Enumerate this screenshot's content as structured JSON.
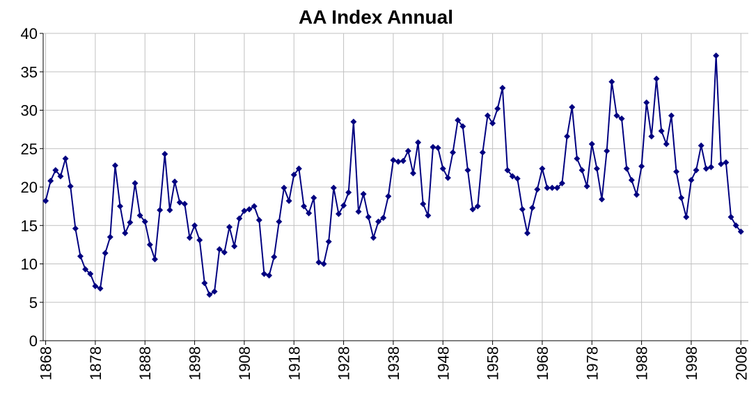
{
  "chart_data": {
    "type": "line",
    "title": "AA Index Annual",
    "x": [
      1868,
      1869,
      1870,
      1871,
      1872,
      1873,
      1874,
      1875,
      1876,
      1877,
      1878,
      1879,
      1880,
      1881,
      1882,
      1883,
      1884,
      1885,
      1886,
      1887,
      1888,
      1889,
      1890,
      1891,
      1892,
      1893,
      1894,
      1895,
      1896,
      1897,
      1898,
      1899,
      1900,
      1901,
      1902,
      1903,
      1904,
      1905,
      1906,
      1907,
      1908,
      1909,
      1910,
      1911,
      1912,
      1913,
      1914,
      1915,
      1916,
      1917,
      1918,
      1919,
      1920,
      1921,
      1922,
      1923,
      1924,
      1925,
      1926,
      1927,
      1928,
      1929,
      1930,
      1931,
      1932,
      1933,
      1934,
      1935,
      1936,
      1937,
      1938,
      1939,
      1940,
      1941,
      1942,
      1943,
      1944,
      1945,
      1946,
      1947,
      1948,
      1949,
      1950,
      1951,
      1952,
      1953,
      1954,
      1955,
      1956,
      1957,
      1958,
      1959,
      1960,
      1961,
      1962,
      1963,
      1964,
      1965,
      1966,
      1967,
      1968,
      1969,
      1970,
      1971,
      1972,
      1973,
      1974,
      1975,
      1976,
      1977,
      1978,
      1979,
      1980,
      1981,
      1982,
      1983,
      1984,
      1985,
      1986,
      1987,
      1988,
      1989,
      1990,
      1991,
      1992,
      1993,
      1994,
      1995,
      1996,
      1997,
      1998,
      1999,
      2000,
      2001,
      2002,
      2003,
      2004,
      2005,
      2006,
      2007,
      2008
    ],
    "series": [
      {
        "color": "#000080",
        "values": [
          18.2,
          20.8,
          22.2,
          21.4,
          23.7,
          20.1,
          14.6,
          11.0,
          9.3,
          8.7,
          7.1,
          6.8,
          11.4,
          13.5,
          22.8,
          17.5,
          14.0,
          15.4,
          20.5,
          16.3,
          15.5,
          12.5,
          10.6,
          17.0,
          24.3,
          17.0,
          20.7,
          18.0,
          17.8,
          13.4,
          15.0,
          13.1,
          7.5,
          6.0,
          6.4,
          11.9,
          11.5,
          14.8,
          12.3,
          15.9,
          16.9,
          17.1,
          17.5,
          15.7,
          8.7,
          8.5,
          10.9,
          15.5,
          19.9,
          18.2,
          21.6,
          22.4,
          17.5,
          16.6,
          18.6,
          10.2,
          10.0,
          12.9,
          19.9,
          16.5,
          17.6,
          19.3,
          28.5,
          16.8,
          19.1,
          16.1,
          13.4,
          15.5,
          16.0,
          18.8,
          23.5,
          23.3,
          23.4,
          24.7,
          21.8,
          25.8,
          17.8,
          16.3,
          25.2,
          25.1,
          22.4,
          21.2,
          24.5,
          28.7,
          27.9,
          22.2,
          17.1,
          17.5,
          24.5,
          29.3,
          28.3,
          30.2,
          32.9,
          22.2,
          21.4,
          21.1,
          17.1,
          14.0,
          17.3,
          19.7,
          22.4,
          19.9,
          19.9,
          19.9,
          20.5,
          26.6,
          30.4,
          23.7,
          22.2,
          20.1,
          25.6,
          22.4,
          18.4,
          24.7,
          33.7,
          29.3,
          28.9,
          22.4,
          20.9,
          19.0,
          22.7,
          31.0,
          26.6,
          34.1,
          27.3,
          25.6,
          29.3,
          22.0,
          18.6,
          16.1,
          20.9,
          22.2,
          25.4,
          22.4,
          22.6,
          37.1,
          23.0,
          23.2,
          16.1,
          15.0,
          14.2
        ]
      }
    ],
    "xlim": [
      1867.5,
      2009.5
    ],
    "xticks": [
      1868,
      1878,
      1888,
      1898,
      1908,
      1918,
      1928,
      1938,
      1948,
      1958,
      1968,
      1978,
      1988,
      1998,
      2008
    ],
    "ylim": [
      0,
      40
    ],
    "yticks": [
      0,
      5,
      10,
      15,
      20,
      25,
      30,
      35,
      40
    ],
    "grid": true
  }
}
